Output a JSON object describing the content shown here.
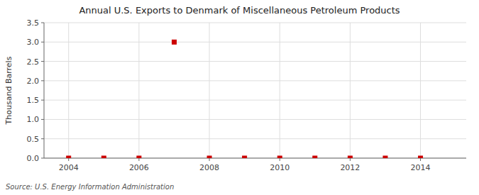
{
  "chart_data": {
    "type": "scatter",
    "title": "Annual U.S. Exports to Denmark of Miscellaneous Petroleum Products",
    "ylabel": "Thousand Barrels",
    "source": "Source: U.S. Energy Information Administration",
    "x": [
      2004,
      2005,
      2006,
      2007,
      2008,
      2009,
      2010,
      2011,
      2012,
      2013,
      2014
    ],
    "values": [
      0,
      0,
      0,
      3.0,
      0,
      0,
      0,
      0,
      0,
      0,
      0
    ],
    "color": "#cc0000",
    "marker": "square",
    "xlim": [
      2003.3,
      2015.3
    ],
    "ylim": [
      0,
      3.5
    ],
    "xticks": [
      2004,
      2006,
      2008,
      2010,
      2012,
      2014
    ],
    "yticks": [
      {
        "value": 0.0,
        "label": "0.0"
      },
      0.5,
      {
        "value": 1.0,
        "label": "1.0"
      },
      1.5,
      {
        "value": 2.0,
        "label": "2.0"
      },
      2.5,
      {
        "value": 3.0,
        "label": "3.0"
      },
      3.5
    ],
    "grid": true
  }
}
